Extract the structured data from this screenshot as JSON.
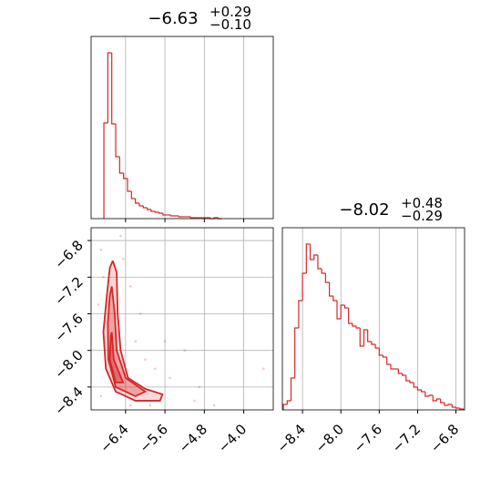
{
  "chart_data": [
    {
      "type": "histogram",
      "title": "−6.63",
      "title_upper": "+0.29",
      "title_lower": "−0.10",
      "color": "#d62728",
      "grid": true,
      "bins": [
        -6.84,
        -6.76,
        -6.68,
        -6.6,
        -6.52,
        -6.44,
        -6.36,
        -6.28,
        -6.2,
        -6.12,
        -6.04,
        -5.96,
        -5.88,
        -5.8,
        -5.72,
        -5.64,
        -5.56,
        -5.48,
        -5.4,
        -5.32,
        -5.24,
        -5.16,
        -5.08,
        -5.0,
        -4.92,
        -4.84,
        -4.76,
        -4.68,
        -4.6,
        -4.52,
        -4.44
      ],
      "values": [
        105,
        182,
        104,
        68,
        50,
        44,
        30,
        22,
        17,
        14,
        12,
        10,
        8,
        7,
        6,
        4,
        4,
        3,
        3,
        2,
        2,
        2,
        1,
        1,
        1,
        1,
        1,
        0,
        1,
        0
      ],
      "xlim": [
        -7.1,
        -3.4
      ],
      "ylim": [
        0,
        200
      ],
      "xticks": [
        -6.4,
        -5.6,
        -4.8,
        -4.0
      ]
    },
    {
      "type": "contour",
      "color": "#d62728",
      "grid": true,
      "xlim": [
        -7.1,
        -3.4
      ],
      "ylim": [
        -8.65,
        -6.66
      ],
      "xticks": [
        {
          "value": -6.4,
          "label": "−6.4"
        },
        {
          "value": -5.6,
          "label": "−5.6"
        },
        {
          "value": -4.8,
          "label": "−4.8"
        },
        {
          "value": -4.0,
          "label": "−4.0"
        }
      ],
      "yticks": [
        {
          "value": -6.8,
          "label": "−6.8"
        },
        {
          "value": -7.2,
          "label": "−7.2"
        },
        {
          "value": -7.6,
          "label": "−7.6"
        },
        {
          "value": -8.0,
          "label": "−8.0"
        },
        {
          "value": -8.4,
          "label": "−8.4"
        }
      ],
      "contours": [
        {
          "x": [
            -6.66,
            -6.58,
            -6.56,
            -6.5,
            -6.35,
            -6.0,
            -5.65,
            -5.7,
            -6.2,
            -6.6,
            -6.8,
            -6.85,
            -6.78,
            -6.72,
            -6.66
          ],
          "y": [
            -7.02,
            -7.15,
            -7.6,
            -8.0,
            -8.3,
            -8.42,
            -8.48,
            -8.55,
            -8.55,
            -8.45,
            -8.2,
            -7.8,
            -7.4,
            -7.1,
            -7.02
          ]
        },
        {
          "x": [
            -6.68,
            -6.62,
            -6.58,
            -6.4,
            -6.0,
            -6.2,
            -6.6,
            -6.75,
            -6.76,
            -6.72,
            -6.68
          ],
          "y": [
            -7.3,
            -7.6,
            -8.0,
            -8.3,
            -8.45,
            -8.5,
            -8.4,
            -8.1,
            -7.7,
            -7.4,
            -7.3
          ]
        },
        {
          "x": [
            -6.68,
            -6.64,
            -6.45,
            -6.6,
            -6.72,
            -6.7,
            -6.68
          ],
          "y": [
            -7.8,
            -8.1,
            -8.35,
            -8.35,
            -8.1,
            -7.85,
            -7.8
          ]
        }
      ],
      "points": {
        "x": [
          -6.9,
          -6.5,
          -6.3,
          -6.2,
          -6.0,
          -5.8,
          -5.5,
          -5.2,
          -4.9,
          -4.6,
          -3.6,
          -6.95,
          -6.9,
          -6.3,
          -5.9,
          -6.1,
          -5.6,
          -5.0,
          -6.45,
          -6.85
        ],
        "y": [
          -6.9,
          -6.75,
          -7.3,
          -7.9,
          -8.1,
          -8.2,
          -8.3,
          -8.0,
          -8.4,
          -8.6,
          -8.2,
          -7.5,
          -8.5,
          -8.6,
          -8.6,
          -7.6,
          -7.9,
          -8.55,
          -7.0,
          -7.2
        ]
      }
    },
    {
      "type": "histogram",
      "title": "−8.02",
      "title_upper": "+0.48",
      "title_lower": "−0.29",
      "color": "#d62728",
      "grid": true,
      "bins": [
        -8.6,
        -8.56,
        -8.52,
        -8.48,
        -8.44,
        -8.4,
        -8.36,
        -8.32,
        -8.28,
        -8.24,
        -8.2,
        -8.16,
        -8.12,
        -8.08,
        -8.04,
        -8.0,
        -7.96,
        -7.92,
        -7.88,
        -7.84,
        -7.8,
        -7.76,
        -7.72,
        -7.68,
        -7.64,
        -7.6,
        -7.56,
        -7.52,
        -7.48,
        -7.44,
        -7.4,
        -7.36,
        -7.32,
        -7.28,
        -7.24,
        -7.2,
        -7.16,
        -7.12,
        -7.08,
        -7.04,
        -7.0,
        -6.96,
        -6.92,
        -6.88,
        -6.84,
        -6.8,
        -6.76,
        -6.72
      ],
      "values": [
        6,
        10,
        35,
        90,
        120,
        150,
        182,
        165,
        170,
        155,
        150,
        140,
        125,
        120,
        100,
        115,
        112,
        95,
        92,
        90,
        70,
        88,
        75,
        72,
        68,
        60,
        58,
        50,
        45,
        45,
        40,
        38,
        32,
        30,
        25,
        22,
        20,
        15,
        16,
        10,
        12,
        8,
        5,
        6,
        3,
        2,
        1
      ],
      "xlim": [
        -8.61,
        -6.71
      ],
      "ylim": [
        0,
        200
      ],
      "xticks": [
        {
          "value": -8.4,
          "label": "−8.4"
        },
        {
          "value": -8.0,
          "label": "−8.0"
        },
        {
          "value": -7.6,
          "label": "−7.6"
        },
        {
          "value": -7.2,
          "label": "−7.2"
        },
        {
          "value": -6.8,
          "label": "−6.8"
        }
      ]
    }
  ]
}
